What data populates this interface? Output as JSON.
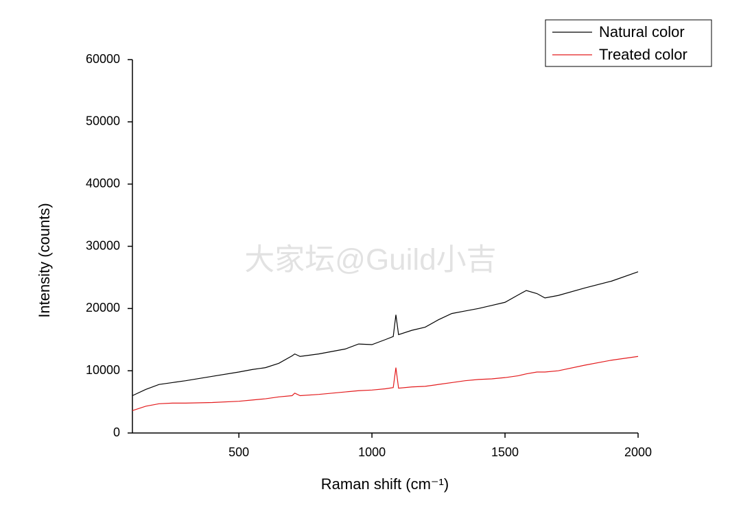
{
  "chart_data": {
    "type": "line",
    "xlabel": "Raman shift (cm⁻¹)",
    "ylabel": "Intensity (counts)",
    "watermark": "大家坛@Guild小吉",
    "x": [
      100,
      150,
      200,
      250,
      300,
      400,
      500,
      550,
      600,
      650,
      700,
      710,
      730,
      800,
      900,
      950,
      1000,
      1050,
      1080,
      1090,
      1100,
      1150,
      1200,
      1250,
      1300,
      1350,
      1400,
      1450,
      1500,
      1550,
      1580,
      1620,
      1650,
      1700,
      1800,
      1900,
      2000
    ],
    "series": [
      {
        "name": "Natural color",
        "color": "#000000",
        "values": [
          6000,
          7000,
          7800,
          8100,
          8400,
          9100,
          9800,
          10200,
          10500,
          11200,
          12400,
          12700,
          12300,
          12700,
          13500,
          14300,
          14200,
          15000,
          15500,
          19000,
          15800,
          16500,
          17000,
          18200,
          19200,
          19600,
          20000,
          20500,
          21000,
          22200,
          22900,
          22400,
          21700,
          22100,
          23300,
          24400,
          25900
        ]
      },
      {
        "name": "Treated color",
        "color": "#e31a1c",
        "values": [
          3600,
          4300,
          4700,
          4800,
          4800,
          4900,
          5100,
          5300,
          5500,
          5800,
          6000,
          6400,
          6000,
          6200,
          6600,
          6800,
          6900,
          7100,
          7300,
          10500,
          7200,
          7400,
          7500,
          7800,
          8100,
          8400,
          8600,
          8700,
          8900,
          9200,
          9500,
          9800,
          9800,
          10000,
          10900,
          11700,
          12300
        ]
      }
    ],
    "xlim": [
      100,
      2000
    ],
    "xticks": [
      500,
      1000,
      1500,
      2000
    ],
    "ylim": [
      0,
      60000
    ],
    "yticks": [
      0,
      10000,
      20000,
      30000,
      40000,
      50000,
      60000
    ],
    "legend": "top-right"
  }
}
